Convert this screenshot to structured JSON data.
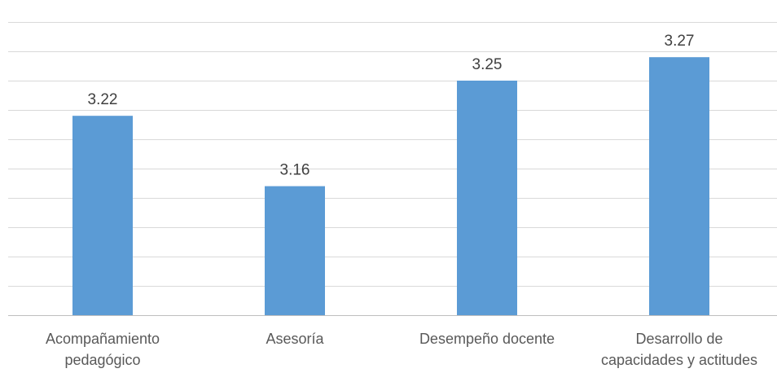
{
  "chart_data": {
    "type": "bar",
    "categories": [
      [
        "Acompañamiento",
        "pedagógico"
      ],
      [
        "Asesoría"
      ],
      [
        "Desempeño docente"
      ],
      [
        "Desarrollo de",
        "capacidades y actitudes"
      ]
    ],
    "values": [
      3.22,
      3.16,
      3.25,
      3.27
    ],
    "data_labels": [
      "3.22",
      "3.16",
      "3.25",
      "3.27"
    ],
    "ylim": [
      3.05,
      3.3
    ],
    "grid": true,
    "legend": "none",
    "colors": {
      "bar": "#5b9bd5",
      "grid": "#d9d9d9",
      "text": "#404040"
    }
  }
}
